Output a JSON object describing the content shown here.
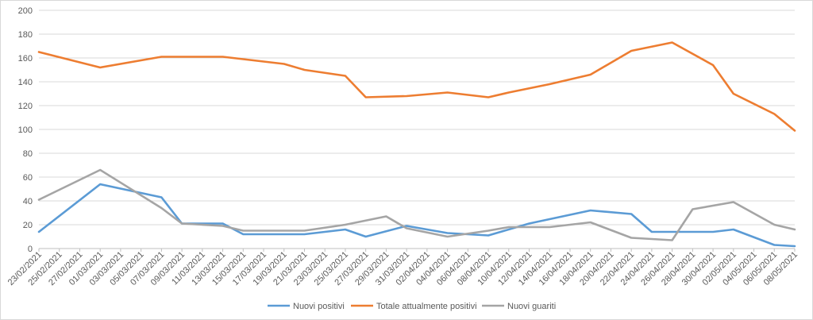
{
  "chart_data": {
    "type": "line",
    "title": "",
    "xlabel": "",
    "ylabel": "",
    "ylim": [
      0,
      200
    ],
    "yticks": [
      0,
      20,
      40,
      60,
      80,
      100,
      120,
      140,
      160,
      180,
      200
    ],
    "grid": true,
    "legend_position": "bottom",
    "x": [
      "23/02/2021",
      "25/02/2021",
      "27/02/2021",
      "01/03/2021",
      "03/03/2021",
      "05/03/2021",
      "07/03/2021",
      "09/03/2021",
      "11/03/2021",
      "13/03/2021",
      "15/03/2021",
      "17/03/2021",
      "19/03/2021",
      "21/03/2021",
      "23/03/2021",
      "25/03/2021",
      "27/03/2021",
      "29/03/2021",
      "31/03/2021",
      "02/04/2021",
      "04/04/2021",
      "06/04/2021",
      "08/04/2021",
      "10/04/2021",
      "12/04/2021",
      "14/04/2021",
      "16/04/2021",
      "18/04/2021",
      "20/04/2021",
      "22/04/2021",
      "24/04/2021",
      "26/04/2021",
      "28/04/2021",
      "30/04/2021",
      "02/05/2021",
      "04/05/2021",
      "06/05/2021",
      "08/05/2021"
    ],
    "series": [
      {
        "name": "Nuovi positivi",
        "color": "#5b9bd5",
        "points": [
          [
            "23/02/2021",
            14
          ],
          [
            "01/03/2021",
            54
          ],
          [
            "07/03/2021",
            43
          ],
          [
            "09/03/2021",
            21
          ],
          [
            "13/03/2021",
            21
          ],
          [
            "15/03/2021",
            12
          ],
          [
            "21/03/2021",
            12
          ],
          [
            "25/03/2021",
            16
          ],
          [
            "27/03/2021",
            10
          ],
          [
            "31/03/2021",
            19
          ],
          [
            "04/04/2021",
            13
          ],
          [
            "08/04/2021",
            11
          ],
          [
            "12/04/2021",
            21
          ],
          [
            "18/04/2021",
            32
          ],
          [
            "22/04/2021",
            29
          ],
          [
            "24/04/2021",
            14
          ],
          [
            "30/04/2021",
            14
          ],
          [
            "02/05/2021",
            16
          ],
          [
            "06/05/2021",
            3
          ],
          [
            "08/05/2021",
            2
          ]
        ]
      },
      {
        "name": "Totale attualmente positivi",
        "color": "#ed7d31",
        "points": [
          [
            "23/02/2021",
            165
          ],
          [
            "01/03/2021",
            152
          ],
          [
            "07/03/2021",
            161
          ],
          [
            "11/03/2021",
            161
          ],
          [
            "13/03/2021",
            161
          ],
          [
            "17/03/2021",
            157
          ],
          [
            "19/03/2021",
            155
          ],
          [
            "21/03/2021",
            150
          ],
          [
            "25/03/2021",
            145
          ],
          [
            "27/03/2021",
            127
          ],
          [
            "31/03/2021",
            128
          ],
          [
            "04/04/2021",
            131
          ],
          [
            "08/04/2021",
            127
          ],
          [
            "10/04/2021",
            131
          ],
          [
            "14/04/2021",
            138
          ],
          [
            "18/04/2021",
            146
          ],
          [
            "22/04/2021",
            166
          ],
          [
            "26/04/2021",
            173
          ],
          [
            "30/04/2021",
            154
          ],
          [
            "02/05/2021",
            130
          ],
          [
            "06/05/2021",
            113
          ],
          [
            "08/05/2021",
            99
          ]
        ]
      },
      {
        "name": "Nuovi guariti",
        "color": "#a5a5a5",
        "points": [
          [
            "23/02/2021",
            41
          ],
          [
            "01/03/2021",
            66
          ],
          [
            "07/03/2021",
            34
          ],
          [
            "09/03/2021",
            21
          ],
          [
            "13/03/2021",
            19
          ],
          [
            "15/03/2021",
            15
          ],
          [
            "21/03/2021",
            15
          ],
          [
            "25/03/2021",
            20
          ],
          [
            "29/03/2021",
            27
          ],
          [
            "31/03/2021",
            17
          ],
          [
            "04/04/2021",
            10
          ],
          [
            "08/04/2021",
            15
          ],
          [
            "10/04/2021",
            18
          ],
          [
            "14/04/2021",
            18
          ],
          [
            "18/04/2021",
            22
          ],
          [
            "22/04/2021",
            9
          ],
          [
            "26/04/2021",
            7
          ],
          [
            "28/04/2021",
            33
          ],
          [
            "02/05/2021",
            39
          ],
          [
            "06/05/2021",
            20
          ],
          [
            "08/05/2021",
            16
          ]
        ]
      }
    ]
  }
}
